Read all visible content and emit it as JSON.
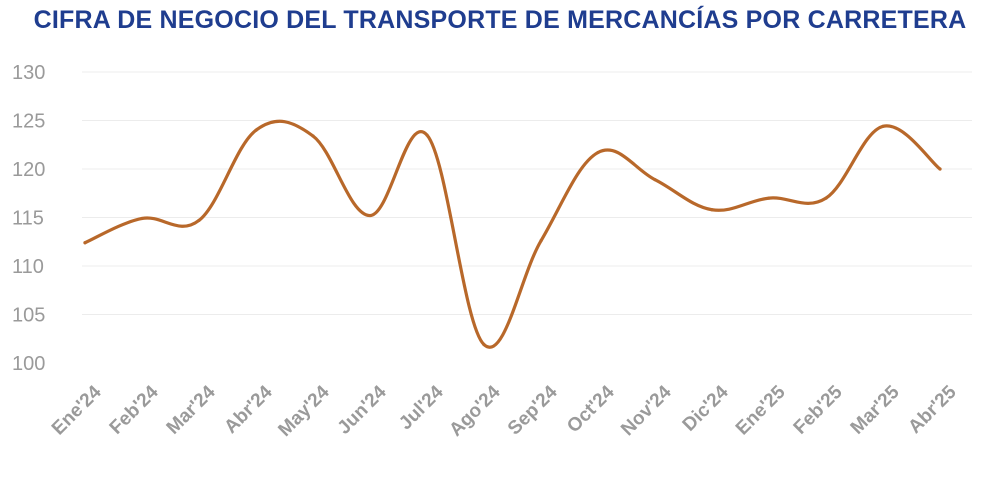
{
  "chart_data": {
    "type": "line",
    "title": "CIFRA DE NEGOCIO DEL TRANSPORTE DE MERCANCÍAS POR CARRETERA",
    "xlabel": "",
    "ylabel": "",
    "categories": [
      "Ene'24",
      "Feb'24",
      "Mar'24",
      "Abr'24",
      "May'24",
      "Jun'24",
      "Jul'24",
      "Ago'24",
      "Sep'24",
      "Oct'24",
      "Nov'24",
      "Dic'24",
      "Ene'25",
      "Feb'25",
      "Mar'25",
      "Abr'25"
    ],
    "series": [
      {
        "values": [
          112.4,
          114.9,
          114.7,
          124.0,
          123.4,
          115.2,
          123.5,
          101.9,
          112.6,
          121.7,
          118.9,
          115.8,
          117.0,
          117.0,
          124.4,
          120.0
        ]
      }
    ],
    "ylim": [
      100,
      130
    ],
    "yticks": [
      "100",
      "105",
      "110",
      "115",
      "120",
      "125",
      "130"
    ],
    "grid": true,
    "legend": "none",
    "line_color": "#b8682a",
    "title_color": "#1f3d8f"
  }
}
